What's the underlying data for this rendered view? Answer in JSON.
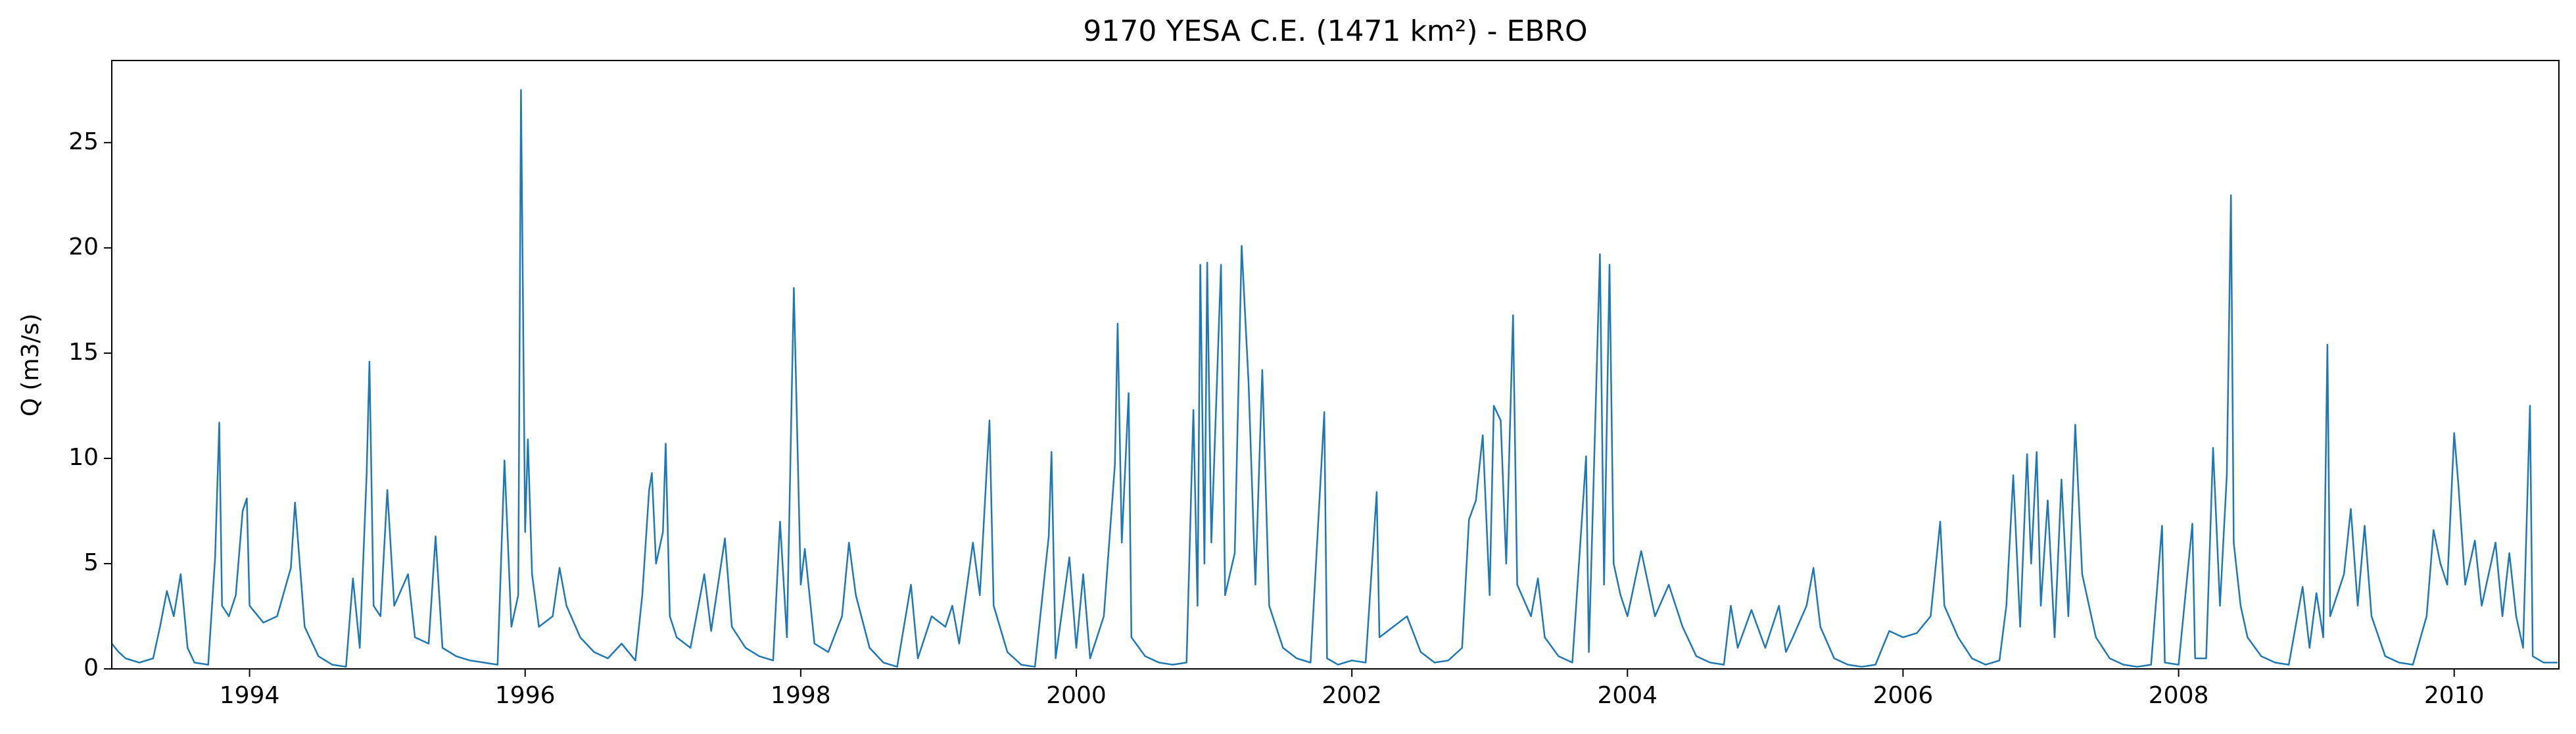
{
  "chart_data": {
    "type": "line",
    "title": "9170 YESA C.E. (1471 km²) - EBRO",
    "y_label": "Q (m3/s)",
    "xlim": [
      1993.0,
      2010.76
    ],
    "xticks": [
      1994,
      1996,
      1998,
      2000,
      2002,
      2004,
      2006,
      2008,
      2010
    ],
    "ylim": [
      0,
      28.9
    ],
    "yticks": [
      0,
      5,
      10,
      15,
      20,
      25
    ],
    "grid": false,
    "x": [
      1993.0,
      1993.05,
      1993.1,
      1993.2,
      1993.3,
      1993.35,
      1993.4,
      1993.45,
      1993.5,
      1993.55,
      1993.6,
      1993.7,
      1993.75,
      1993.78,
      1993.8,
      1993.85,
      1993.9,
      1993.95,
      1993.98,
      1994.0,
      1994.1,
      1994.2,
      1994.3,
      1994.33,
      1994.4,
      1994.5,
      1994.6,
      1994.7,
      1994.75,
      1994.8,
      1994.85,
      1994.87,
      1994.9,
      1994.95,
      1995.0,
      1995.05,
      1995.15,
      1995.2,
      1995.3,
      1995.35,
      1995.4,
      1995.5,
      1995.6,
      1995.7,
      1995.8,
      1995.85,
      1995.9,
      1995.95,
      1995.97,
      1996.0,
      1996.02,
      1996.05,
      1996.1,
      1996.2,
      1996.25,
      1996.3,
      1996.4,
      1996.5,
      1996.6,
      1996.7,
      1996.8,
      1996.85,
      1996.9,
      1996.92,
      1996.95,
      1997.0,
      1997.02,
      1997.05,
      1997.1,
      1997.2,
      1997.3,
      1997.35,
      1997.45,
      1997.5,
      1997.6,
      1997.7,
      1997.8,
      1997.85,
      1997.9,
      1997.95,
      1998.0,
      1998.03,
      1998.1,
      1998.2,
      1998.3,
      1998.35,
      1998.4,
      1998.5,
      1998.6,
      1998.7,
      1998.8,
      1998.85,
      1998.95,
      1999.05,
      1999.1,
      1999.15,
      1999.25,
      1999.3,
      1999.35,
      1999.37,
      1999.4,
      1999.5,
      1999.6,
      1999.7,
      1999.8,
      1999.82,
      1999.85,
      1999.95,
      2000.0,
      2000.05,
      2000.1,
      2000.2,
      2000.25,
      2000.28,
      2000.3,
      2000.33,
      2000.38,
      2000.4,
      2000.5,
      2000.6,
      2000.7,
      2000.8,
      2000.85,
      2000.88,
      2000.9,
      2000.93,
      2000.95,
      2000.98,
      2001.05,
      2001.08,
      2001.15,
      2001.2,
      2001.25,
      2001.3,
      2001.35,
      2001.4,
      2001.5,
      2001.6,
      2001.7,
      2001.8,
      2001.82,
      2001.9,
      2002.0,
      2002.1,
      2002.18,
      2002.2,
      2002.3,
      2002.4,
      2002.5,
      2002.6,
      2002.7,
      2002.8,
      2002.85,
      2002.9,
      2002.95,
      2003.0,
      2003.03,
      2003.08,
      2003.12,
      2003.17,
      2003.2,
      2003.3,
      2003.35,
      2003.4,
      2003.5,
      2003.6,
      2003.7,
      2003.72,
      2003.8,
      2003.83,
      2003.87,
      2003.9,
      2003.95,
      2004.0,
      2004.1,
      2004.2,
      2004.3,
      2004.4,
      2004.5,
      2004.6,
      2004.7,
      2004.75,
      2004.8,
      2004.9,
      2005.0,
      2005.1,
      2005.15,
      2005.2,
      2005.3,
      2005.35,
      2005.4,
      2005.5,
      2005.6,
      2005.7,
      2005.8,
      2005.9,
      2006.0,
      2006.1,
      2006.2,
      2006.27,
      2006.3,
      2006.4,
      2006.5,
      2006.6,
      2006.7,
      2006.75,
      2006.8,
      2006.85,
      2006.9,
      2006.93,
      2006.97,
      2007.0,
      2007.05,
      2007.1,
      2007.15,
      2007.2,
      2007.25,
      2007.3,
      2007.4,
      2007.5,
      2007.6,
      2007.7,
      2007.8,
      2007.88,
      2007.9,
      2008.0,
      2008.1,
      2008.12,
      2008.2,
      2008.25,
      2008.3,
      2008.35,
      2008.38,
      2008.4,
      2008.45,
      2008.5,
      2008.6,
      2008.7,
      2008.8,
      2008.9,
      2008.95,
      2009.0,
      2009.05,
      2009.08,
      2009.1,
      2009.2,
      2009.25,
      2009.3,
      2009.35,
      2009.4,
      2009.5,
      2009.6,
      2009.7,
      2009.8,
      2009.85,
      2009.9,
      2009.95,
      2010.0,
      2010.03,
      2010.08,
      2010.15,
      2010.2,
      2010.3,
      2010.35,
      2010.4,
      2010.45,
      2010.5,
      2010.55,
      2010.57,
      2010.65,
      2010.75
    ],
    "series": [
      {
        "color": "#1f77b4",
        "values": [
          1.2,
          0.8,
          0.5,
          0.3,
          0.5,
          2.0,
          3.7,
          2.5,
          4.5,
          1.0,
          0.3,
          0.2,
          5.3,
          11.7,
          3.0,
          2.5,
          3.5,
          7.5,
          8.1,
          3.0,
          2.2,
          2.5,
          4.8,
          7.9,
          2.0,
          0.6,
          0.2,
          0.1,
          4.3,
          1.0,
          9.3,
          14.6,
          3.0,
          2.5,
          8.5,
          3.0,
          4.5,
          1.5,
          1.2,
          6.3,
          1.0,
          0.6,
          0.4,
          0.3,
          0.2,
          9.9,
          2.0,
          3.5,
          27.5,
          6.5,
          10.9,
          4.5,
          2.0,
          2.5,
          4.8,
          3.0,
          1.5,
          0.8,
          0.5,
          1.2,
          0.4,
          3.5,
          8.5,
          9.3,
          5.0,
          6.5,
          10.7,
          2.5,
          1.5,
          1.0,
          4.5,
          1.8,
          6.2,
          2.0,
          1.0,
          0.6,
          0.4,
          7.0,
          1.5,
          18.1,
          4.0,
          5.7,
          1.2,
          0.8,
          2.5,
          6.0,
          3.5,
          1.0,
          0.3,
          0.1,
          4.0,
          0.5,
          2.5,
          2.0,
          3.0,
          1.2,
          6.0,
          3.5,
          9.5,
          11.8,
          3.0,
          0.8,
          0.2,
          0.1,
          6.3,
          10.3,
          0.5,
          5.3,
          1.0,
          4.5,
          0.5,
          2.5,
          7.0,
          9.7,
          16.4,
          6.0,
          13.1,
          1.5,
          0.6,
          0.3,
          0.2,
          0.3,
          12.3,
          3.0,
          19.2,
          5.0,
          19.3,
          6.0,
          19.2,
          3.5,
          5.5,
          20.1,
          13.6,
          4.0,
          14.2,
          3.0,
          1.0,
          0.5,
          0.3,
          12.2,
          0.5,
          0.2,
          0.4,
          0.3,
          8.4,
          1.5,
          2.0,
          2.5,
          0.8,
          0.3,
          0.4,
          1.0,
          7.1,
          8.0,
          11.1,
          3.5,
          12.5,
          11.8,
          5.0,
          16.8,
          4.0,
          2.5,
          4.3,
          1.5,
          0.6,
          0.3,
          10.1,
          0.8,
          19.7,
          4.0,
          19.2,
          5.0,
          3.5,
          2.5,
          5.6,
          2.5,
          4.0,
          2.0,
          0.6,
          0.3,
          0.2,
          3.0,
          1.0,
          2.8,
          1.0,
          3.0,
          0.8,
          1.5,
          3.0,
          4.8,
          2.0,
          0.5,
          0.2,
          0.1,
          0.2,
          1.8,
          1.5,
          1.7,
          2.5,
          7.0,
          3.0,
          1.5,
          0.5,
          0.2,
          0.4,
          3.0,
          9.2,
          2.0,
          10.2,
          5.0,
          10.3,
          3.0,
          8.0,
          1.5,
          9.0,
          2.5,
          11.6,
          4.5,
          1.5,
          0.5,
          0.2,
          0.1,
          0.2,
          6.8,
          0.3,
          0.2,
          6.9,
          0.5,
          0.5,
          10.5,
          3.0,
          9.2,
          22.5,
          6.0,
          3.0,
          1.5,
          0.6,
          0.3,
          0.2,
          3.9,
          1.0,
          3.6,
          1.5,
          15.4,
          2.5,
          4.5,
          7.6,
          3.0,
          6.8,
          2.5,
          0.6,
          0.3,
          0.2,
          2.5,
          6.6,
          5.0,
          4.0,
          11.2,
          8.8,
          4.0,
          6.1,
          3.0,
          6.0,
          2.5,
          5.5,
          2.5,
          1.0,
          12.5,
          0.6,
          0.3,
          0.3
        ]
      }
    ]
  }
}
